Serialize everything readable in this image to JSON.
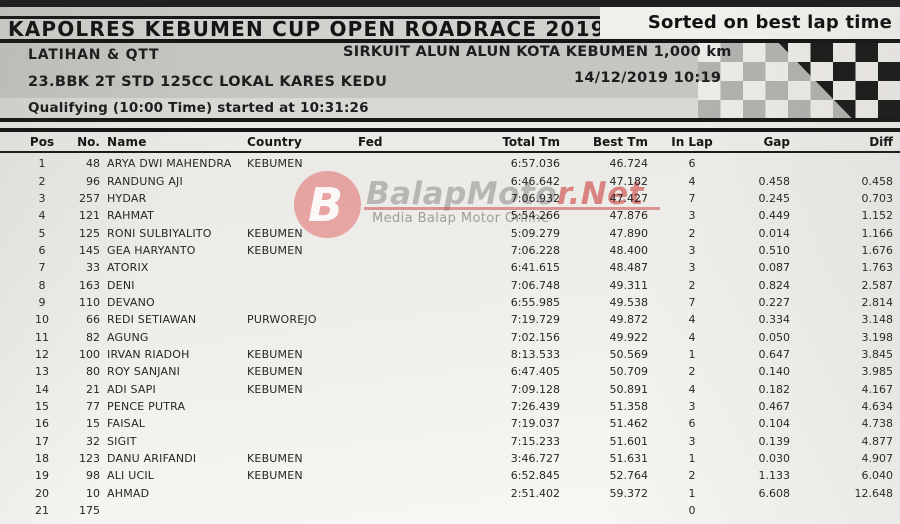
{
  "header": {
    "title": "KAPOLRES KEBUMEN CUP OPEN ROADRACE 2019",
    "sort_label": "Sorted on best lap time",
    "session": "LATIHAN & QTT",
    "circuit": "SIRKUIT ALUN ALUN KOTA KEBUMEN 1,000 km",
    "event_class": "23.BBK 2T STD 125CC LOKAL KARES KEDU",
    "date_time": "14/12/2019 10:19",
    "session_info": "Qualifying (10:00 Time) started at 10:31:26"
  },
  "watermark": {
    "logo_letter": "B",
    "brand_gray": "BalapMoto",
    "brand_red": "r.Net",
    "tagline": "Media Balap Motor Online",
    "red_color": "#cc4340",
    "gray_color": "#949391"
  },
  "table": {
    "columns": [
      "Pos",
      "No.",
      "Name",
      "Country",
      "Fed",
      "Total Tm",
      "Best Tm",
      "In Lap",
      "Gap",
      "Diff"
    ],
    "rows": [
      {
        "pos": "1",
        "no": "48",
        "name": "ARYA DWI MAHENDRA",
        "country": "KEBUMEN",
        "fed": "",
        "total": "6:57.036",
        "best": "46.724",
        "inlap": "6",
        "gap": "",
        "diff": ""
      },
      {
        "pos": "2",
        "no": "96",
        "name": "RANDUNG AJI",
        "country": "",
        "fed": "",
        "total": "6:46.642",
        "best": "47.182",
        "inlap": "4",
        "gap": "0.458",
        "diff": "0.458"
      },
      {
        "pos": "3",
        "no": "257",
        "name": "HYDAR",
        "country": "",
        "fed": "",
        "total": "7:06.932",
        "best": "47.427",
        "inlap": "7",
        "gap": "0.245",
        "diff": "0.703"
      },
      {
        "pos": "4",
        "no": "121",
        "name": "RAHMAT",
        "country": "",
        "fed": "",
        "total": "5:54.266",
        "best": "47.876",
        "inlap": "3",
        "gap": "0.449",
        "diff": "1.152"
      },
      {
        "pos": "5",
        "no": "125",
        "name": "RONI SULBIYALITO",
        "country": "KEBUMEN",
        "fed": "",
        "total": "5:09.279",
        "best": "47.890",
        "inlap": "2",
        "gap": "0.014",
        "diff": "1.166"
      },
      {
        "pos": "6",
        "no": "145",
        "name": "GEA HARYANTO",
        "country": "KEBUMEN",
        "fed": "",
        "total": "7:06.228",
        "best": "48.400",
        "inlap": "3",
        "gap": "0.510",
        "diff": "1.676"
      },
      {
        "pos": "7",
        "no": "33",
        "name": "ATORIX",
        "country": "",
        "fed": "",
        "total": "6:41.615",
        "best": "48.487",
        "inlap": "3",
        "gap": "0.087",
        "diff": "1.763"
      },
      {
        "pos": "8",
        "no": "163",
        "name": "DENI",
        "country": "",
        "fed": "",
        "total": "7:06.748",
        "best": "49.311",
        "inlap": "2",
        "gap": "0.824",
        "diff": "2.587"
      },
      {
        "pos": "9",
        "no": "110",
        "name": "DEVANO",
        "country": "",
        "fed": "",
        "total": "6:55.985",
        "best": "49.538",
        "inlap": "7",
        "gap": "0.227",
        "diff": "2.814"
      },
      {
        "pos": "10",
        "no": "66",
        "name": "REDI SETIAWAN",
        "country": "PURWOREJO",
        "fed": "",
        "total": "7:19.729",
        "best": "49.872",
        "inlap": "4",
        "gap": "0.334",
        "diff": "3.148"
      },
      {
        "pos": "11",
        "no": "82",
        "name": "AGUNG",
        "country": "",
        "fed": "",
        "total": "7:02.156",
        "best": "49.922",
        "inlap": "4",
        "gap": "0.050",
        "diff": "3.198"
      },
      {
        "pos": "12",
        "no": "100",
        "name": "IRVAN RIADOH",
        "country": "KEBUMEN",
        "fed": "",
        "total": "8:13.533",
        "best": "50.569",
        "inlap": "1",
        "gap": "0.647",
        "diff": "3.845"
      },
      {
        "pos": "13",
        "no": "80",
        "name": "ROY SANJANI",
        "country": "KEBUMEN",
        "fed": "",
        "total": "6:47.405",
        "best": "50.709",
        "inlap": "2",
        "gap": "0.140",
        "diff": "3.985"
      },
      {
        "pos": "14",
        "no": "21",
        "name": "ADI SAPI",
        "country": "KEBUMEN",
        "fed": "",
        "total": "7:09.128",
        "best": "50.891",
        "inlap": "4",
        "gap": "0.182",
        "diff": "4.167"
      },
      {
        "pos": "15",
        "no": "77",
        "name": "PENCE PUTRA",
        "country": "",
        "fed": "",
        "total": "7:26.439",
        "best": "51.358",
        "inlap": "3",
        "gap": "0.467",
        "diff": "4.634"
      },
      {
        "pos": "16",
        "no": "15",
        "name": "FAISAL",
        "country": "",
        "fed": "",
        "total": "7:19.037",
        "best": "51.462",
        "inlap": "6",
        "gap": "0.104",
        "diff": "4.738"
      },
      {
        "pos": "17",
        "no": "32",
        "name": "SIGIT",
        "country": "",
        "fed": "",
        "total": "7:15.233",
        "best": "51.601",
        "inlap": "3",
        "gap": "0.139",
        "diff": "4.877"
      },
      {
        "pos": "18",
        "no": "123",
        "name": "DANU ARIFANDI",
        "country": "KEBUMEN",
        "fed": "",
        "total": "3:46.727",
        "best": "51.631",
        "inlap": "1",
        "gap": "0.030",
        "diff": "4.907"
      },
      {
        "pos": "19",
        "no": "98",
        "name": "ALI UCIL",
        "country": "KEBUMEN",
        "fed": "",
        "total": "6:52.845",
        "best": "52.764",
        "inlap": "2",
        "gap": "1.133",
        "diff": "6.040"
      },
      {
        "pos": "20",
        "no": "10",
        "name": "AHMAD",
        "country": "",
        "fed": "",
        "total": "2:51.402",
        "best": "59.372",
        "inlap": "1",
        "gap": "6.608",
        "diff": "12.648"
      },
      {
        "pos": "21",
        "no": "175",
        "name": "",
        "country": "",
        "fed": "",
        "total": "",
        "best": "",
        "inlap": "0",
        "gap": "",
        "diff": ""
      }
    ]
  }
}
